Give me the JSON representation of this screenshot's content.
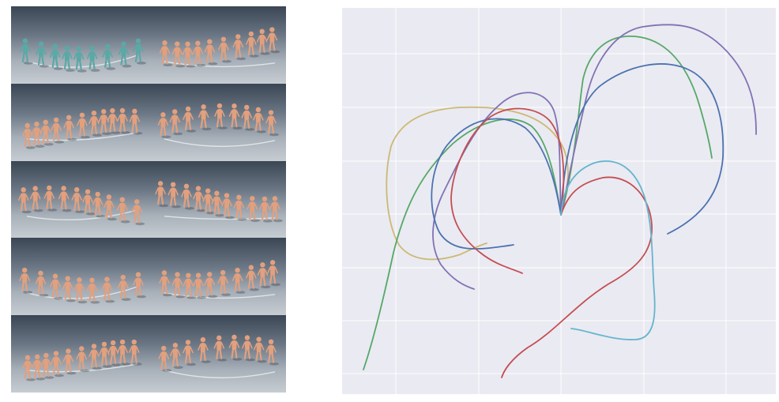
{
  "render_grid": {
    "cells": [
      {
        "figure_color": "#5aa9a6",
        "shadow_color": "#2f3a44"
      },
      {
        "figure_color": "#e2a07e",
        "shadow_color": "#2f3a44"
      },
      {
        "figure_color": "#e2a07e",
        "shadow_color": "#2f3a44"
      },
      {
        "figure_color": "#e2a07e",
        "shadow_color": "#2f3a44"
      },
      {
        "figure_color": "#e2a07e",
        "shadow_color": "#2f3a44"
      },
      {
        "figure_color": "#e2a07e",
        "shadow_color": "#2f3a44"
      },
      {
        "figure_color": "#e2a07e",
        "shadow_color": "#2f3a44"
      },
      {
        "figure_color": "#e2a07e",
        "shadow_color": "#2f3a44"
      },
      {
        "figure_color": "#e2a07e",
        "shadow_color": "#2f3a44"
      },
      {
        "figure_color": "#e2a07e",
        "shadow_color": "#2f3a44"
      }
    ]
  },
  "trajectory_plot": {
    "background": "#eaeaf2",
    "grid_color": "#ffffff",
    "series_colors": {
      "yellow": "#ccb974",
      "green": "#55a868",
      "purple": "#8172b3",
      "blue": "#4c72b0",
      "red": "#c44e52",
      "cyan": "#64b5cd"
    }
  }
}
